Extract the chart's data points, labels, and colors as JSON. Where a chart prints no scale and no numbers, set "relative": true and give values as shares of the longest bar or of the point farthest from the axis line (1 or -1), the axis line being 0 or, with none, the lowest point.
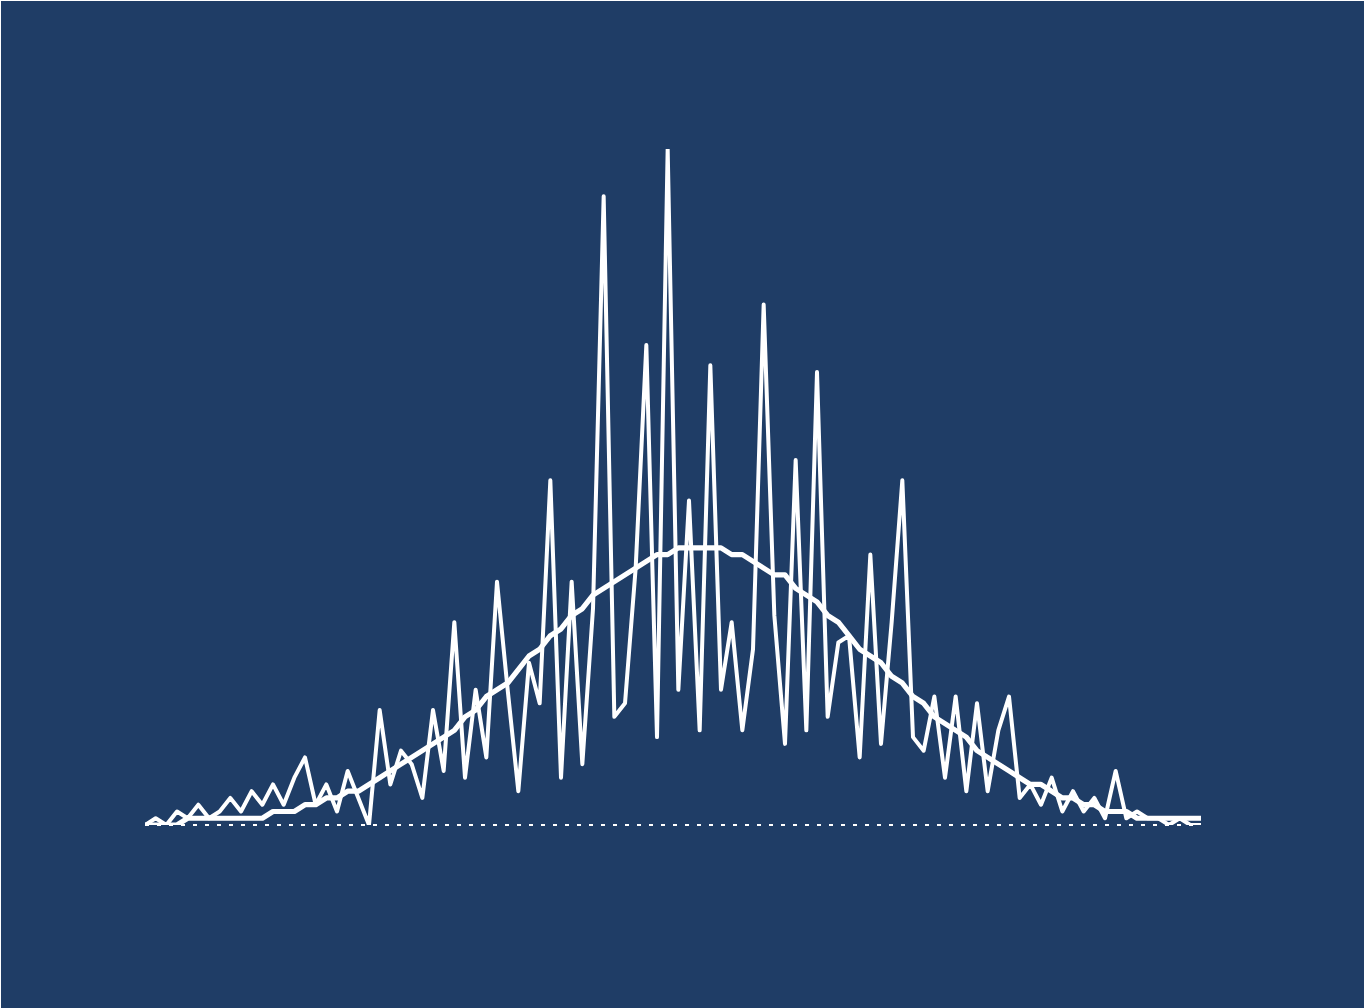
{
  "chart_data": {
    "type": "line",
    "relative": true,
    "categories": [
      null,
      null,
      null,
      null,
      null,
      null,
      null,
      null,
      null,
      null,
      null,
      null,
      null,
      null,
      null,
      null,
      null,
      null,
      null,
      null,
      null,
      null,
      null,
      null,
      null,
      null,
      null,
      null,
      null,
      null,
      null,
      null,
      null,
      null,
      null,
      null,
      null,
      null,
      null,
      null,
      null,
      null,
      null,
      null,
      null,
      null,
      null,
      null,
      null,
      null,
      null,
      null,
      null,
      null,
      null,
      null,
      null,
      null,
      null,
      null,
      null,
      null,
      null,
      null,
      null,
      null,
      null,
      null,
      null,
      null,
      null,
      null,
      null,
      null,
      null,
      null,
      null,
      null,
      null,
      null,
      null,
      null,
      null,
      null,
      null,
      null,
      null,
      null,
      null,
      null,
      null,
      null,
      null,
      null,
      null,
      null,
      null,
      null,
      null,
      null
    ],
    "series": [
      {
        "color": "#ffffff",
        "values": [
          0.0,
          0.01,
          0.0,
          0.02,
          0.01,
          0.03,
          0.01,
          0.02,
          0.04,
          0.02,
          0.05,
          0.03,
          0.06,
          0.03,
          0.07,
          0.1,
          0.03,
          0.06,
          0.02,
          0.08,
          0.04,
          0.0,
          0.17,
          0.06,
          0.11,
          0.09,
          0.04,
          0.17,
          0.08,
          0.3,
          0.07,
          0.2,
          0.1,
          0.36,
          0.2,
          0.05,
          0.24,
          0.18,
          0.51,
          0.07,
          0.36,
          0.09,
          0.32,
          0.93,
          0.16,
          0.18,
          0.38,
          0.71,
          0.13,
          1.0,
          0.2,
          0.48,
          0.14,
          0.68,
          0.2,
          0.3,
          0.14,
          0.26,
          0.77,
          0.31,
          0.12,
          0.54,
          0.14,
          0.67,
          0.16,
          0.27,
          0.28,
          0.1,
          0.4,
          0.12,
          0.3,
          0.51,
          0.13,
          0.11,
          0.19,
          0.07,
          0.19,
          0.05,
          0.18,
          0.05,
          0.14,
          0.19,
          0.04,
          0.06,
          0.03,
          0.07,
          0.02,
          0.05,
          0.02,
          0.04,
          0.01,
          0.08,
          0.01,
          0.02,
          0.01,
          0.01,
          0.0,
          0.01,
          0.0,
          0.0
        ]
      },
      {
        "color": "#ffffff",
        "values": [
          0.0,
          0.0,
          0.0,
          0.0,
          0.01,
          0.01,
          0.01,
          0.01,
          0.01,
          0.01,
          0.01,
          0.01,
          0.02,
          0.02,
          0.02,
          0.03,
          0.03,
          0.04,
          0.04,
          0.05,
          0.05,
          0.06,
          0.07,
          0.08,
          0.09,
          0.1,
          0.11,
          0.12,
          0.13,
          0.14,
          0.16,
          0.17,
          0.19,
          0.2,
          0.21,
          0.23,
          0.25,
          0.26,
          0.28,
          0.29,
          0.31,
          0.32,
          0.34,
          0.35,
          0.36,
          0.37,
          0.38,
          0.39,
          0.4,
          0.4,
          0.41,
          0.41,
          0.41,
          0.41,
          0.41,
          0.4,
          0.4,
          0.39,
          0.38,
          0.37,
          0.37,
          0.35,
          0.34,
          0.33,
          0.31,
          0.3,
          0.28,
          0.26,
          0.25,
          0.24,
          0.22,
          0.21,
          0.19,
          0.18,
          0.16,
          0.15,
          0.14,
          0.13,
          0.11,
          0.1,
          0.09,
          0.08,
          0.07,
          0.06,
          0.06,
          0.05,
          0.04,
          0.04,
          0.03,
          0.03,
          0.02,
          0.02,
          0.02,
          0.01,
          0.01,
          0.01,
          0.01,
          0.01,
          0.01,
          0.01
        ]
      }
    ]
  }
}
